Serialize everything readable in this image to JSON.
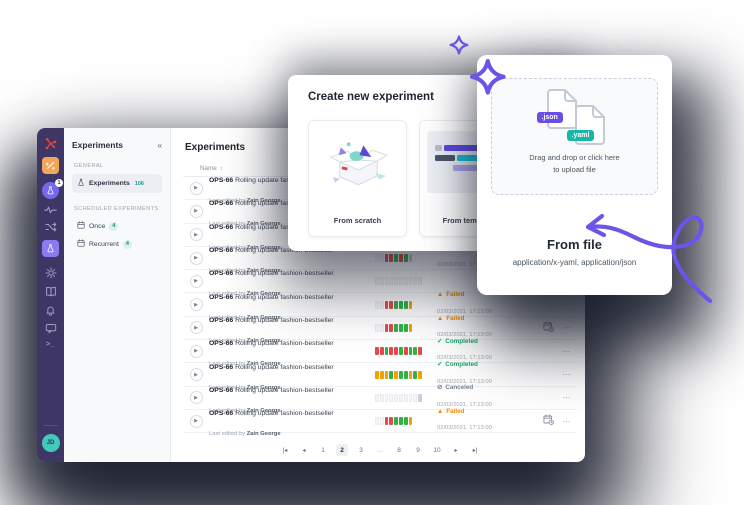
{
  "colors": {
    "accent": "#6C54E8",
    "rail": "#3E3765",
    "bar_red": "#E5484D",
    "bar_green": "#2FB344",
    "bar_orange": "#F59F00",
    "failed": "#F08C00",
    "completed": "#18A86B",
    "canceled": "#7C8592",
    "teal": "#2AA894",
    "json_badge": "#6B4EE6",
    "yaml_badge": "#16B8A5"
  },
  "rail": {
    "flask_badge": "1",
    "avatar_initials": "JD",
    "terminal_glyph": ">_"
  },
  "subnav": {
    "title": "Experiments",
    "collapse_glyph": "«",
    "sections": [
      {
        "label": "GENERAL",
        "items": [
          {
            "icon": "flask",
            "label": "Experiments",
            "count": "106",
            "active": true,
            "count_style": "text"
          }
        ]
      },
      {
        "label": "SCHEDULED EXPERIMENTS",
        "items": [
          {
            "icon": "calendar",
            "label": "Once",
            "count": "4",
            "active": false,
            "count_style": "badge"
          },
          {
            "icon": "calendar",
            "label": "Recurrent",
            "count": "4",
            "active": false,
            "count_style": "badge"
          }
        ]
      }
    ]
  },
  "main": {
    "title": "Experiments",
    "table": {
      "name_header": "Name",
      "sort_glyph": "↕",
      "more_glyph": "⋯",
      "status_icons": {
        "failed": "▲",
        "completed": "✓",
        "canceled": "⊘"
      },
      "rows": [
        {
          "id": "OPS-66",
          "name": "Rolling update fashion-bestseller",
          "edited": "Last edited by",
          "editor": "Zain George",
          "bars": [],
          "status": null,
          "scheduled": false
        },
        {
          "id": "OPS-66",
          "name": "Rolling update fashion-bestseller",
          "edited": "Last edited by",
          "editor": "Zain George",
          "bars": [],
          "status": null,
          "scheduled": false
        },
        {
          "id": "OPS-66",
          "name": "Rolling update fashion-bestseller",
          "edited": "Last edited by",
          "editor": "Zain George",
          "bars": [],
          "status": null,
          "scheduled": false
        },
        {
          "id": "OPS-66",
          "name": "Rolling update fashion-bestseller",
          "edited": "Last edited by",
          "editor": "Zain George",
          "bars": [
            "p",
            "p",
            "r",
            "r",
            "g",
            "r",
            "g",
            "d"
          ],
          "status": {
            "kind": "canceled",
            "label": "Canceled",
            "date": "02/03/2021, 17:13:00"
          },
          "scheduled": false
        },
        {
          "id": "OPS-66",
          "name": "Rolling update fashion-bestseller",
          "edited": "Last edited by",
          "editor": "Zain George",
          "bars": [
            "p",
            "p",
            "p",
            "p",
            "p",
            "p",
            "p",
            "p",
            "p",
            "p"
          ],
          "status": null,
          "scheduled": false
        },
        {
          "id": "OPS-66",
          "name": "Rolling update fashion-bestseller",
          "edited": "Last edited by",
          "editor": "Zain George",
          "bars": [
            "p",
            "p",
            "r",
            "r",
            "g",
            "g",
            "g",
            "o"
          ],
          "status": {
            "kind": "failed",
            "label": "Failed",
            "date": "02/03/2021, 17:13:00"
          },
          "scheduled": false
        },
        {
          "id": "OPS-66",
          "name": "Rolling update fashion-bestseller",
          "edited": "Last edited by",
          "editor": "Zain George",
          "bars": [
            "p",
            "p",
            "r",
            "r",
            "g",
            "g",
            "g",
            "o"
          ],
          "status": {
            "kind": "failed",
            "label": "Failed",
            "date": "02/03/2021, 17:13:00"
          },
          "scheduled": true
        },
        {
          "id": "OPS-66",
          "name": "Rolling update fashion-bestseller",
          "edited": "Last edited by",
          "editor": "Zain George",
          "bars": [
            "r",
            "r",
            "g",
            "r",
            "r",
            "g",
            "r",
            "g",
            "g",
            "r"
          ],
          "status": {
            "kind": "completed",
            "label": "Completed",
            "date": "02/03/2021, 17:13:00"
          },
          "scheduled": false
        },
        {
          "id": "OPS-66",
          "name": "Rolling update fashion-bestseller",
          "edited": "Last edited by",
          "editor": "Zain George",
          "bars": [
            "o",
            "o",
            "o",
            "g",
            "o",
            "g",
            "g",
            "o",
            "g",
            "o"
          ],
          "status": {
            "kind": "completed",
            "label": "Completed",
            "date": "02/03/2021, 17:13:00"
          },
          "scheduled": false
        },
        {
          "id": "OPS-66",
          "name": "Rolling update fashion-bestseller",
          "edited": "Last edited by",
          "editor": "Zain George",
          "bars": [
            "p",
            "p",
            "p",
            "p",
            "p",
            "p",
            "p",
            "p",
            "p",
            "d"
          ],
          "status": {
            "kind": "canceled",
            "label": "Canceled",
            "date": "02/03/2021, 17:13:00"
          },
          "scheduled": false
        },
        {
          "id": "OPS-66",
          "name": "Rolling update fashion-bestseller",
          "edited": "Last edited by",
          "editor": "Zain George",
          "bars": [
            "p",
            "p",
            "r",
            "r",
            "g",
            "g",
            "g",
            "o"
          ],
          "status": {
            "kind": "failed",
            "label": "Failed",
            "date": "02/03/2021, 17:13:00"
          },
          "scheduled": true
        }
      ]
    },
    "pagination": {
      "first": "|◂",
      "prev": "◂",
      "next": "▸",
      "last": "▸|",
      "pages": [
        "1",
        "2",
        "3",
        "…",
        "8",
        "9",
        "10"
      ],
      "active": "2"
    }
  },
  "modal": {
    "title": "Create new experiment",
    "options": [
      {
        "label": "From scratch"
      },
      {
        "label": "From template"
      }
    ]
  },
  "file_card": {
    "json_badge": ".json",
    "yaml_badge": ".yaml",
    "drop_line1": "Drag and drop or click here",
    "drop_line2": "to upload file",
    "title": "From file",
    "subtitle": "application/x-yaml, application/json"
  }
}
